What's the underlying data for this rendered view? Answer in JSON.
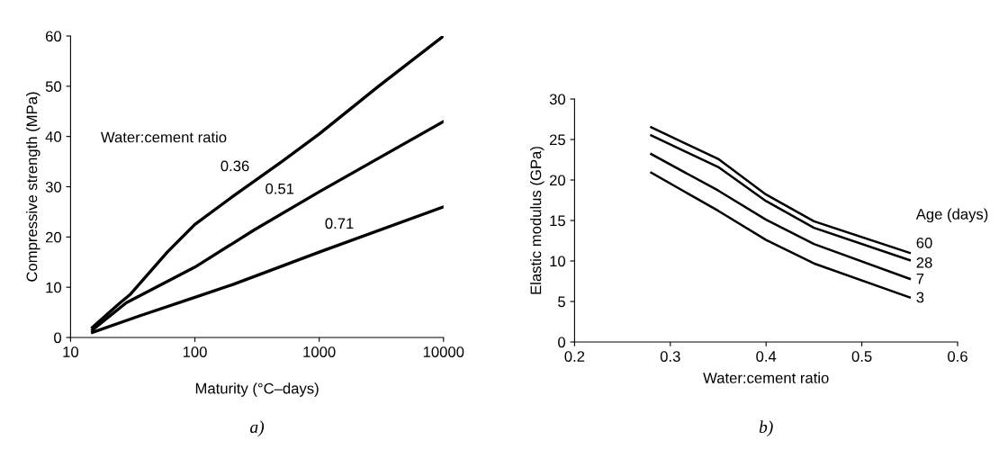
{
  "chart_data": [
    {
      "type": "line",
      "xlabel": "Maturity (°C–days)",
      "ylabel": "Compressive strength (MPa)",
      "legend_title": "Water:cement ratio",
      "log": "x",
      "xlim": [
        10,
        10000
      ],
      "xticks": [
        10,
        100,
        1000,
        10000
      ],
      "ylim": [
        0,
        60
      ],
      "yticks": [
        0,
        10,
        20,
        30,
        40,
        50,
        60
      ],
      "grid": false,
      "legend": false,
      "annotations": [
        "a)"
      ],
      "series": [
        {
          "name": "0.36",
          "color": "#000000",
          "x": [
            15,
            25,
            30,
            60,
            100,
            200,
            500,
            1000,
            3000,
            10000
          ],
          "values": [
            2,
            6.9,
            8.5,
            17,
            22.5,
            28,
            35,
            40.5,
            50,
            60
          ]
        },
        {
          "name": "0.51",
          "color": "#000000",
          "x": [
            15,
            28,
            100,
            300,
            1000,
            10000
          ],
          "values": [
            1.5,
            6.9,
            14,
            21.4,
            29,
            43
          ]
        },
        {
          "name": "0.71",
          "color": "#000000",
          "x": [
            15,
            35,
            100,
            200,
            1000,
            10000
          ],
          "values": [
            1,
            4.2,
            8,
            10.5,
            17,
            26
          ]
        }
      ]
    },
    {
      "type": "line",
      "xlabel": "Water:cement ratio",
      "ylabel": "Elastic modulus (GPa)",
      "legend_title": "Age (days)",
      "xlim": [
        0.2,
        0.6
      ],
      "xticks": [
        0.2,
        0.3,
        0.4,
        0.5,
        0.6
      ],
      "ylim": [
        0,
        30
      ],
      "yticks": [
        0,
        5,
        10,
        15,
        20,
        25,
        30
      ],
      "grid": false,
      "legend": false,
      "annotations": [
        "b)"
      ],
      "series": [
        {
          "name": "60",
          "color": "#000000",
          "x": [
            0.28,
            0.35,
            0.4,
            0.45,
            0.55
          ],
          "values": [
            26.5,
            22.6,
            18.2,
            14.9,
            11.0
          ]
        },
        {
          "name": "28",
          "color": "#000000",
          "x": [
            0.28,
            0.35,
            0.4,
            0.45,
            0.55
          ],
          "values": [
            25.5,
            21.6,
            17.4,
            14.1,
            10.1
          ]
        },
        {
          "name": "7",
          "color": "#000000",
          "x": [
            0.28,
            0.35,
            0.4,
            0.45,
            0.55
          ],
          "values": [
            23.2,
            18.7,
            15.1,
            12.1,
            7.8
          ]
        },
        {
          "name": "3",
          "color": "#000000",
          "x": [
            0.28,
            0.35,
            0.4,
            0.45,
            0.55
          ],
          "values": [
            20.9,
            16.2,
            12.6,
            9.7,
            5.5
          ]
        }
      ]
    }
  ]
}
